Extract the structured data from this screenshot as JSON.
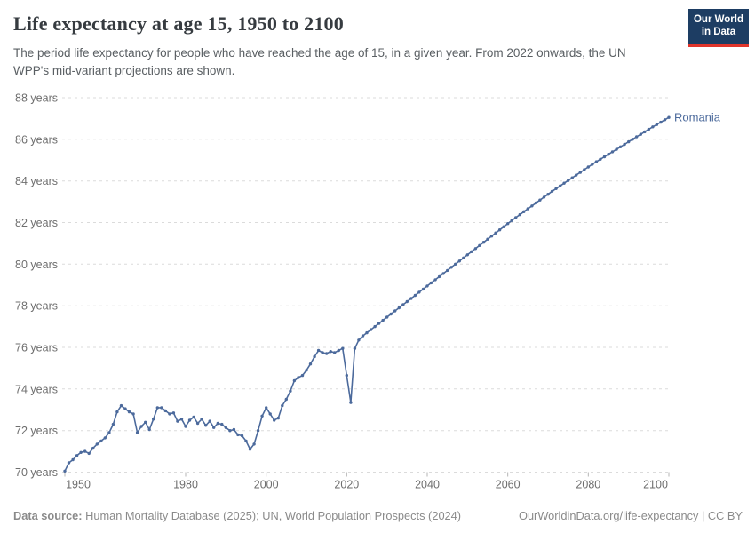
{
  "header": {
    "title": "Life expectancy at age 15, 1950 to 2100",
    "subtitle": "The period life expectancy for people who have reached the age of 15, in a given year. From 2022 onwards, the UN WPP's mid-variant projections are shown.",
    "logo": {
      "line1": "Our World",
      "line2": "in Data"
    }
  },
  "footer": {
    "source_label": "Data source:",
    "source_text": " Human Mortality Database (2025); UN, World Population Prospects (2024)",
    "link_text": "OurWorldinData.org/life-expectancy | CC BY"
  },
  "colors": {
    "line": "#4C6A9C",
    "entity_label": "#4C6A9C",
    "grid": "#dbdbdb",
    "axis_text": "#6e6e6e",
    "tick_mark": "#b5b5b5",
    "title_text": "#363b40",
    "subtitle_text": "#5a5f63",
    "footer_text": "#8a8a8a",
    "logo_bg": "#1d3d63",
    "logo_red": "#e0352b"
  },
  "chart_data": {
    "type": "line",
    "title": "Life expectancy at age 15, 1950 to 2100",
    "entity": "Romania",
    "unit": "years",
    "xlabel": "",
    "ylabel": "",
    "xlim": [
      1950,
      2100
    ],
    "ylim": [
      70,
      88
    ],
    "grid": "horizontal-dashed",
    "legend": "end-of-line-label",
    "markers": "dots-on-points",
    "projection_start_year": 2022,
    "x_ticks": [
      {
        "v": 1950,
        "label": "1950"
      },
      {
        "v": 1980,
        "label": "1980"
      },
      {
        "v": 2000,
        "label": "2000"
      },
      {
        "v": 2020,
        "label": "2020"
      },
      {
        "v": 2040,
        "label": "2040"
      },
      {
        "v": 2060,
        "label": "2060"
      },
      {
        "v": 2080,
        "label": "2080"
      },
      {
        "v": 2100,
        "label": "2100"
      }
    ],
    "y_ticks": [
      {
        "v": 70,
        "label": "70 years"
      },
      {
        "v": 72,
        "label": "72 years"
      },
      {
        "v": 74,
        "label": "74 years"
      },
      {
        "v": 76,
        "label": "76 years"
      },
      {
        "v": 78,
        "label": "78 years"
      },
      {
        "v": 80,
        "label": "80 years"
      },
      {
        "v": 82,
        "label": "82 years"
      },
      {
        "v": 84,
        "label": "84 years"
      },
      {
        "v": 86,
        "label": "86 years"
      },
      {
        "v": 88,
        "label": "88 years"
      }
    ],
    "points": [
      [
        1950,
        70.05
      ],
      [
        1951,
        70.45
      ],
      [
        1952,
        70.6
      ],
      [
        1953,
        70.8
      ],
      [
        1954,
        70.95
      ],
      [
        1955,
        71.0
      ],
      [
        1956,
        70.9
      ],
      [
        1957,
        71.15
      ],
      [
        1958,
        71.35
      ],
      [
        1959,
        71.5
      ],
      [
        1960,
        71.65
      ],
      [
        1961,
        71.9
      ],
      [
        1962,
        72.3
      ],
      [
        1963,
        72.9
      ],
      [
        1964,
        73.2
      ],
      [
        1965,
        73.05
      ],
      [
        1966,
        72.9
      ],
      [
        1967,
        72.8
      ],
      [
        1968,
        71.9
      ],
      [
        1969,
        72.2
      ],
      [
        1970,
        72.4
      ],
      [
        1971,
        72.05
      ],
      [
        1972,
        72.55
      ],
      [
        1973,
        73.1
      ],
      [
        1974,
        73.1
      ],
      [
        1975,
        72.95
      ],
      [
        1976,
        72.8
      ],
      [
        1977,
        72.85
      ],
      [
        1978,
        72.45
      ],
      [
        1979,
        72.55
      ],
      [
        1980,
        72.2
      ],
      [
        1981,
        72.5
      ],
      [
        1982,
        72.65
      ],
      [
        1983,
        72.35
      ],
      [
        1984,
        72.55
      ],
      [
        1985,
        72.25
      ],
      [
        1986,
        72.45
      ],
      [
        1987,
        72.15
      ],
      [
        1988,
        72.35
      ],
      [
        1989,
        72.3
      ],
      [
        1990,
        72.15
      ],
      [
        1991,
        72.0
      ],
      [
        1992,
        72.05
      ],
      [
        1993,
        71.8
      ],
      [
        1994,
        71.75
      ],
      [
        1995,
        71.5
      ],
      [
        1996,
        71.1
      ],
      [
        1997,
        71.35
      ],
      [
        1998,
        72.0
      ],
      [
        1999,
        72.7
      ],
      [
        2000,
        73.1
      ],
      [
        2001,
        72.8
      ],
      [
        2002,
        72.5
      ],
      [
        2003,
        72.6
      ],
      [
        2004,
        73.2
      ],
      [
        2005,
        73.5
      ],
      [
        2006,
        73.9
      ],
      [
        2007,
        74.4
      ],
      [
        2008,
        74.55
      ],
      [
        2009,
        74.65
      ],
      [
        2010,
        74.9
      ],
      [
        2011,
        75.2
      ],
      [
        2012,
        75.55
      ],
      [
        2013,
        75.85
      ],
      [
        2014,
        75.75
      ],
      [
        2015,
        75.7
      ],
      [
        2016,
        75.8
      ],
      [
        2017,
        75.75
      ],
      [
        2018,
        75.85
      ],
      [
        2019,
        75.95
      ],
      [
        2020,
        74.65
      ],
      [
        2021,
        73.35
      ],
      [
        2022,
        75.95
      ],
      [
        2023,
        76.35
      ],
      [
        2024,
        76.55
      ],
      [
        2025,
        76.7
      ],
      [
        2026,
        76.85
      ],
      [
        2027,
        77.0
      ],
      [
        2028,
        77.15
      ],
      [
        2029,
        77.3
      ],
      [
        2030,
        77.45
      ],
      [
        2031,
        77.6
      ],
      [
        2032,
        77.75
      ],
      [
        2033,
        77.9
      ],
      [
        2034,
        78.05
      ],
      [
        2035,
        78.2
      ],
      [
        2036,
        78.35
      ],
      [
        2037,
        78.5
      ],
      [
        2038,
        78.65
      ],
      [
        2039,
        78.8
      ],
      [
        2040,
        78.95
      ],
      [
        2041,
        79.1
      ],
      [
        2042,
        79.25
      ],
      [
        2043,
        79.4
      ],
      [
        2044,
        79.55
      ],
      [
        2045,
        79.7
      ],
      [
        2046,
        79.85
      ],
      [
        2047,
        80.0
      ],
      [
        2048,
        80.15
      ],
      [
        2049,
        80.3
      ],
      [
        2050,
        80.45
      ],
      [
        2051,
        80.6
      ],
      [
        2052,
        80.75
      ],
      [
        2053,
        80.9
      ],
      [
        2054,
        81.05
      ],
      [
        2055,
        81.2
      ],
      [
        2056,
        81.35
      ],
      [
        2057,
        81.5
      ],
      [
        2058,
        81.65
      ],
      [
        2059,
        81.8
      ],
      [
        2060,
        81.95
      ],
      [
        2061,
        82.1
      ],
      [
        2062,
        82.24
      ],
      [
        2063,
        82.38
      ],
      [
        2064,
        82.52
      ],
      [
        2065,
        82.66
      ],
      [
        2066,
        82.8
      ],
      [
        2067,
        82.94
      ],
      [
        2068,
        83.08
      ],
      [
        2069,
        83.22
      ],
      [
        2070,
        83.36
      ],
      [
        2071,
        83.5
      ],
      [
        2072,
        83.63
      ],
      [
        2073,
        83.76
      ],
      [
        2074,
        83.89
      ],
      [
        2075,
        84.02
      ],
      [
        2076,
        84.15
      ],
      [
        2077,
        84.28
      ],
      [
        2078,
        84.41
      ],
      [
        2079,
        84.54
      ],
      [
        2080,
        84.67
      ],
      [
        2081,
        84.8
      ],
      [
        2082,
        84.92
      ],
      [
        2083,
        85.04
      ],
      [
        2084,
        85.16
      ],
      [
        2085,
        85.28
      ],
      [
        2086,
        85.4
      ],
      [
        2087,
        85.52
      ],
      [
        2088,
        85.64
      ],
      [
        2089,
        85.76
      ],
      [
        2090,
        85.88
      ],
      [
        2091,
        86.0
      ],
      [
        2092,
        86.12
      ],
      [
        2093,
        86.24
      ],
      [
        2094,
        86.36
      ],
      [
        2095,
        86.48
      ],
      [
        2096,
        86.6
      ],
      [
        2097,
        86.71
      ],
      [
        2098,
        86.82
      ],
      [
        2099,
        86.94
      ],
      [
        2100,
        87.05
      ]
    ]
  }
}
